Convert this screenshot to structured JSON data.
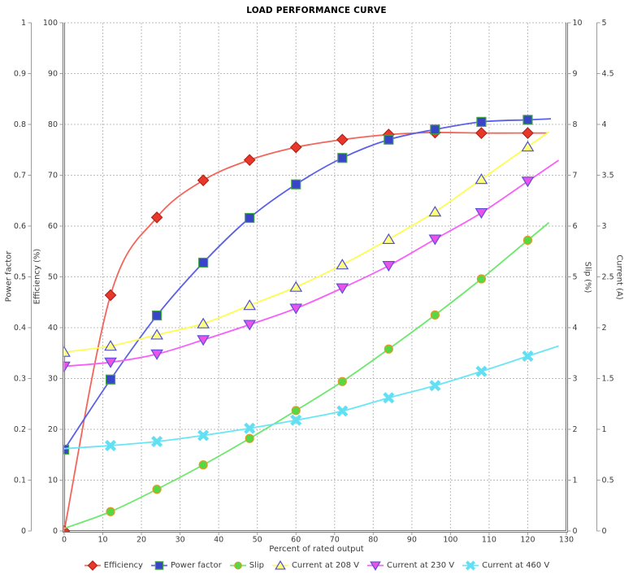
{
  "title": "LOAD PERFORMANCE CURVE",
  "background_color": "#ffffff",
  "grid_color": "#bdbdbd",
  "text_color": "#3b3b3b",
  "chart_data": {
    "type": "line",
    "title": "LOAD PERFORMANCE CURVE",
    "xlabel": "Percent of rated output",
    "xlim": [
      0,
      130
    ],
    "x_ticks": [
      0,
      10,
      20,
      30,
      40,
      50,
      60,
      70,
      80,
      90,
      100,
      110,
      120,
      130
    ],
    "grid": true,
    "legend_position": "bottom",
    "axes": [
      {
        "id": "power-factor-axis",
        "key": "pf",
        "title": "Power factor",
        "side": "left-outer",
        "lim": [
          0,
          1
        ],
        "ticks": [
          0,
          0.1,
          0.2,
          0.3,
          0.4,
          0.5,
          0.6,
          0.7,
          0.8,
          0.9,
          1
        ]
      },
      {
        "id": "efficiency-axis",
        "key": "eff",
        "title": "Efficiency (%)",
        "side": "left-inner",
        "lim": [
          0,
          100
        ],
        "ticks": [
          0,
          10,
          20,
          30,
          40,
          50,
          60,
          70,
          80,
          90,
          100
        ]
      },
      {
        "id": "slip-axis",
        "key": "slip",
        "title": "Slip (%)",
        "side": "right-inner",
        "lim": [
          0,
          10
        ],
        "ticks": [
          0,
          1,
          2,
          3,
          4,
          5,
          6,
          7,
          8,
          9,
          10
        ]
      },
      {
        "id": "current-axis",
        "key": "cur",
        "title": "Current (A)",
        "side": "right-outer",
        "lim": [
          0,
          5
        ],
        "ticks": [
          0,
          0.5,
          1,
          1.5,
          2,
          2.5,
          3,
          3.5,
          4,
          4.5,
          5
        ]
      }
    ],
    "x": [
      0,
      12,
      24,
      36,
      48,
      60,
      72,
      84,
      96,
      108,
      120
    ],
    "series": [
      {
        "id": "efficiency",
        "name": "Efficiency",
        "axis_key": "eff",
        "marker": "diamond",
        "line_color": "#f3655a",
        "fill": "#e8382c",
        "stroke": "#b22318",
        "values": [
          0,
          46.4,
          61.7,
          69.0,
          73.0,
          75.5,
          77.0,
          78.0,
          78.4,
          78.3,
          78.3
        ]
      },
      {
        "id": "power-factor",
        "name": "Power factor",
        "axis_key": "pf",
        "marker": "square",
        "line_color": "#5a60e8",
        "fill": "#3945c9",
        "stroke": "#44a544",
        "values": [
          0.16,
          0.298,
          0.424,
          0.528,
          0.616,
          0.682,
          0.734,
          0.77,
          0.79,
          0.805,
          0.809
        ]
      },
      {
        "id": "slip",
        "name": "Slip",
        "axis_key": "slip",
        "marker": "circle",
        "first_marker_hidden": true,
        "line_color": "#6ce86c",
        "fill": "#54d943",
        "stroke": "#e09a2a",
        "values": [
          0.05,
          0.38,
          0.82,
          1.3,
          1.82,
          2.37,
          2.94,
          3.58,
          4.25,
          4.96,
          5.72
        ]
      },
      {
        "id": "current-208v",
        "name": "Current at 208 V",
        "axis_key": "cur",
        "marker": "triangle-up",
        "line_color": "#fdfd4f",
        "fill": "#ffff80",
        "stroke": "#4f4fd0",
        "values": [
          1.76,
          1.82,
          1.93,
          2.04,
          2.22,
          2.4,
          2.62,
          2.87,
          3.14,
          3.46,
          3.78
        ]
      },
      {
        "id": "current-230v",
        "name": "Current at 230 V",
        "axis_key": "cur",
        "marker": "triangle-down",
        "line_color": "#f85ef8",
        "fill": "#ea52ea",
        "stroke": "#5c50d6",
        "values": [
          1.62,
          1.66,
          1.74,
          1.88,
          2.03,
          2.19,
          2.39,
          2.61,
          2.87,
          3.13,
          3.44
        ]
      },
      {
        "id": "current-460v",
        "name": "Current at 460 V",
        "axis_key": "cur",
        "marker": "x",
        "first_marker_hidden": true,
        "line_color": "#68e6f6",
        "fill": "#62dff2",
        "stroke": "#62dff2",
        "values": [
          0.81,
          0.84,
          0.88,
          0.94,
          1.01,
          1.09,
          1.18,
          1.31,
          1.43,
          1.57,
          1.72
        ]
      }
    ]
  }
}
